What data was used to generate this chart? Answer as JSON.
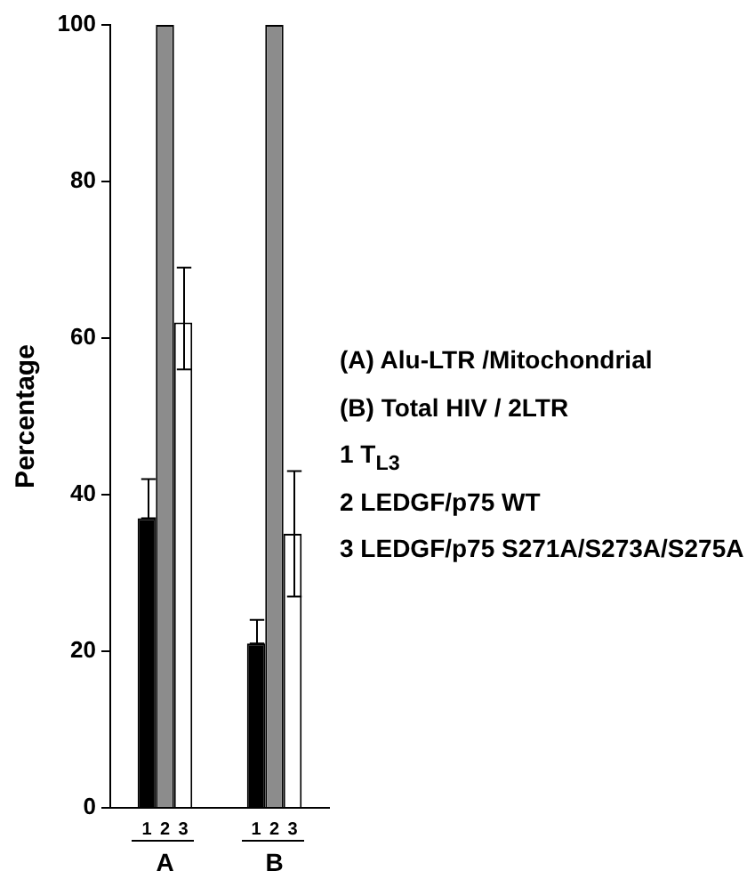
{
  "chart_data": {
    "type": "bar",
    "ylabel": "Percentage",
    "categories": [
      "A",
      "B"
    ],
    "series": [
      {
        "name": "1",
        "color": "#000000",
        "values": [
          37,
          21
        ],
        "errors": [
          [
            37,
            42
          ],
          [
            21,
            24
          ]
        ]
      },
      {
        "name": "2",
        "color": "#8c8c8c",
        "values": [
          100,
          100
        ]
      },
      {
        "name": "3",
        "color": "#ffffff",
        "values": [
          62,
          35
        ],
        "errors": [
          [
            56,
            69
          ],
          [
            27,
            43
          ]
        ]
      }
    ],
    "ylim": [
      0,
      100
    ],
    "yticks": [
      0,
      20,
      40,
      60,
      80,
      100
    ],
    "grid": false,
    "legend": false,
    "annotations": [
      "(A) Alu-LTR /Mitochondrial",
      "(B) Total HIV / 2LTR",
      "1 T$_{L3}$",
      "2 LEDGF/p75 WT",
      "3 LEDGF/p75 S271A/S273A/S275A"
    ]
  }
}
